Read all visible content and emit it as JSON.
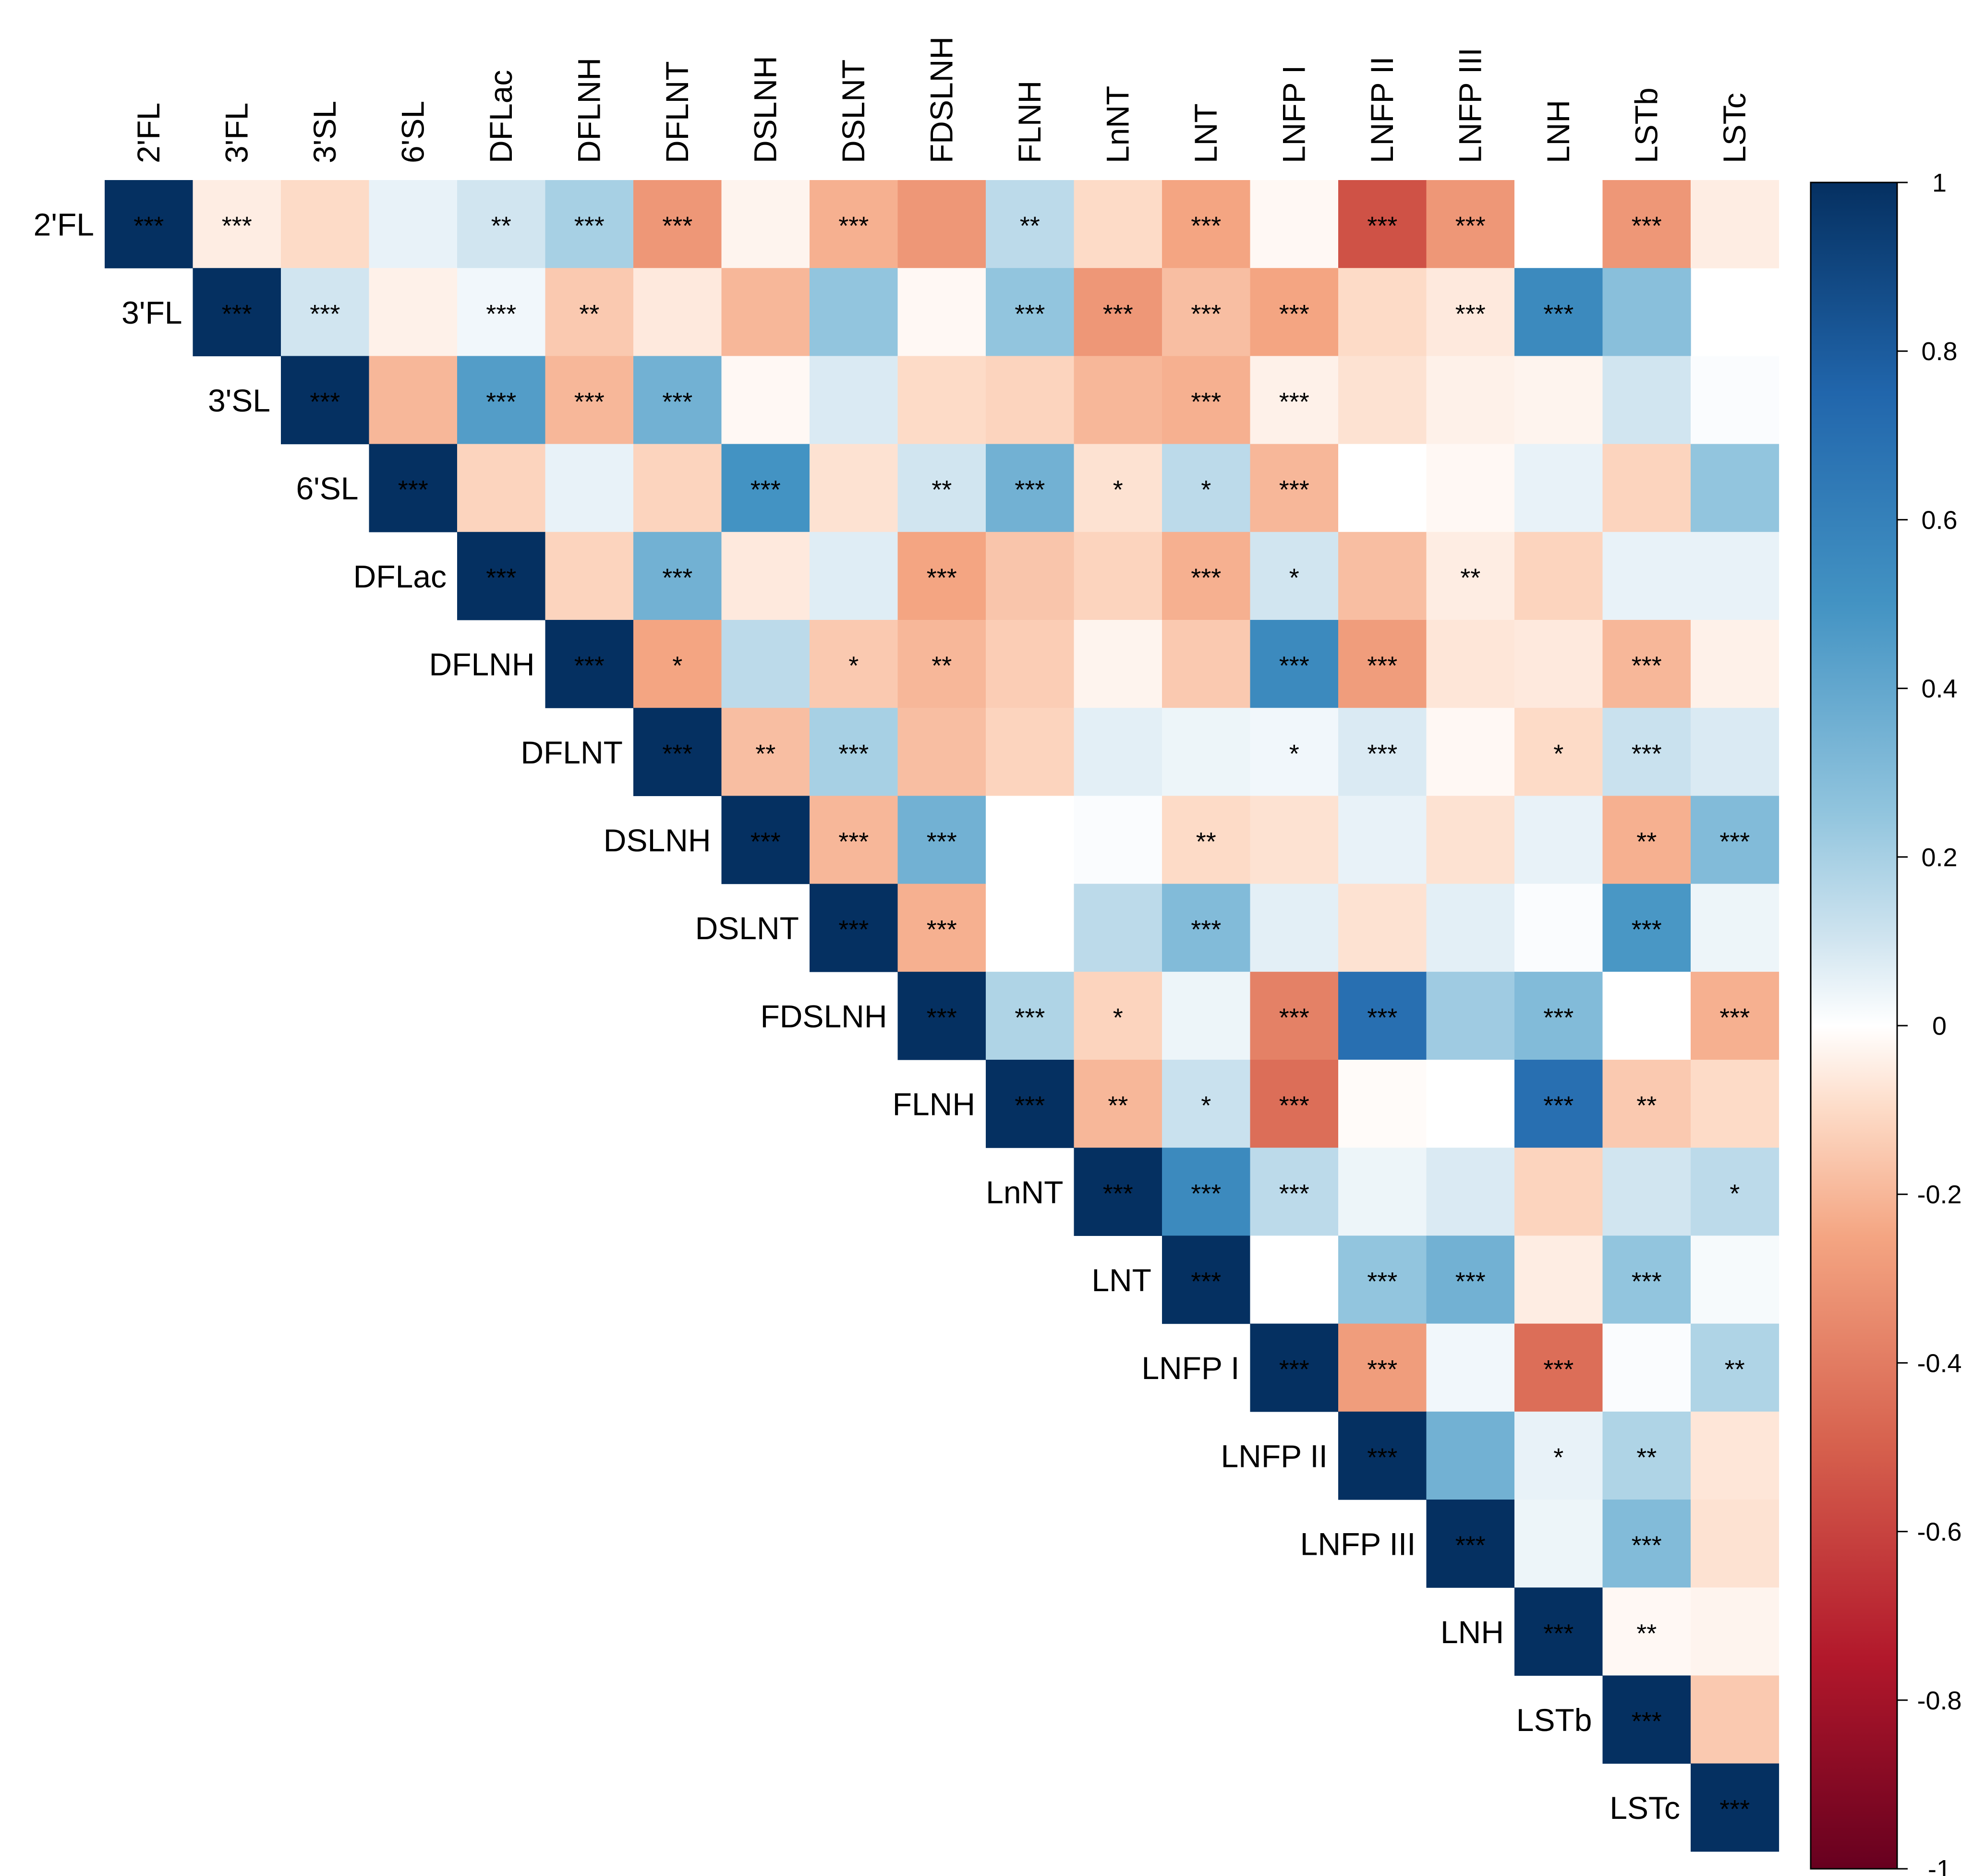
{
  "chart_data": {
    "type": "heatmap",
    "title": "",
    "variables": [
      "2'FL",
      "3'FL",
      "3'SL",
      "6'SL",
      "DFLac",
      "DFLNH",
      "DFLNT",
      "DSLNH",
      "DSLNT",
      "FDSLNH",
      "FLNH",
      "LnNT",
      "LNT",
      "LNFP I",
      "LNFP II",
      "LNFP III",
      "LNH",
      "LSTb",
      "LSTc"
    ],
    "matrix_shape": "upper-triangular",
    "values": [
      [
        1.0,
        -0.05,
        -0.1,
        0.05,
        0.1,
        0.2,
        -0.3,
        -0.03,
        -0.22,
        -0.3,
        0.15,
        -0.1,
        -0.25,
        -0.02,
        -0.55,
        -0.3,
        0.0,
        -0.3,
        -0.05
      ],
      [
        1.0,
        0.1,
        -0.04,
        0.03,
        -0.15,
        -0.06,
        -0.2,
        0.25,
        -0.02,
        0.25,
        -0.3,
        -0.18,
        -0.25,
        -0.1,
        -0.06,
        0.55,
        0.28
      ],
      [
        1.0,
        -0.2,
        0.45,
        -0.2,
        0.35,
        -0.02,
        0.08,
        -0.1,
        -0.12,
        -0.2,
        -0.22,
        -0.04,
        -0.08,
        -0.04,
        -0.03,
        0.1,
        0.01
      ],
      [
        1.0,
        -0.12,
        0.05,
        -0.12,
        0.5,
        -0.08,
        0.1,
        0.35,
        -0.08,
        0.15,
        -0.2,
        0.0,
        -0.02,
        0.05,
        -0.12,
        0.25
      ],
      [
        1.0,
        -0.12,
        0.35,
        -0.06,
        0.07,
        -0.25,
        -0.16,
        -0.12,
        -0.22,
        0.1,
        -0.18,
        -0.05,
        -0.12,
        0.05,
        0.05
      ],
      [
        1.0,
        -0.25,
        0.15,
        -0.15,
        -0.2,
        -0.14,
        -0.03,
        -0.15,
        0.55,
        -0.28,
        -0.07,
        -0.06,
        -0.2,
        -0.04
      ],
      [
        1.0,
        -0.18,
        0.2,
        -0.18,
        -0.12,
        0.06,
        0.04,
        0.03,
        0.08,
        -0.02,
        -0.1,
        0.12,
        0.08
      ],
      [
        1.0,
        -0.2,
        0.35,
        0.0,
        0.01,
        -0.1,
        -0.08,
        0.05,
        -0.08,
        0.05,
        -0.22,
        0.3
      ],
      [
        1.0,
        -0.22,
        0.0,
        0.15,
        0.3,
        0.06,
        -0.08,
        0.06,
        0.01,
        0.48,
        0.04
      ],
      [
        1.0,
        0.18,
        -0.12,
        0.04,
        -0.38,
        0.7,
        0.22,
        0.3,
        0.0,
        -0.22
      ],
      [
        1.0,
        -0.2,
        0.12,
        -0.45,
        -0.01,
        0.0,
        0.7,
        -0.15,
        -0.1
      ],
      [
        1.0,
        0.55,
        0.15,
        0.04,
        0.08,
        -0.12,
        0.1,
        0.15
      ],
      [
        1.0,
        0.0,
        0.25,
        0.35,
        -0.05,
        0.25,
        0.02
      ],
      [
        1.0,
        -0.28,
        0.03,
        -0.45,
        0.01,
        0.18
      ],
      [
        1.0,
        0.35,
        0.05,
        0.18,
        -0.07
      ],
      [
        1.0,
        0.04,
        0.3,
        -0.08
      ],
      [
        1.0,
        -0.02,
        -0.03
      ],
      [
        1.0,
        -0.15
      ],
      [
        1.0
      ]
    ],
    "significance": [
      [
        "***",
        "***",
        "",
        "",
        "**",
        "***",
        "***",
        "",
        "***",
        "",
        "**",
        "",
        "***",
        "",
        "***",
        "***",
        "",
        "***",
        ""
      ],
      [
        "***",
        "***",
        "",
        "***",
        "**",
        "",
        "",
        "",
        "",
        "***",
        "***",
        "***",
        "***",
        "",
        "***",
        "***",
        "",
        ""
      ],
      [
        "***",
        "",
        "***",
        "***",
        "***",
        "",
        "",
        "",
        "",
        "",
        "***",
        "***",
        "",
        "",
        "",
        "",
        "",
        ""
      ],
      [
        "***",
        "",
        "",
        "",
        "***",
        "",
        "**",
        "***",
        "*",
        "*",
        "***",
        "",
        "",
        "",
        "",
        ""
      ],
      [
        "***",
        "",
        "***",
        "",
        "",
        "***",
        "",
        "",
        "***",
        "*",
        "",
        "**",
        "",
        "",
        ""
      ],
      [
        "***",
        "*",
        "",
        "*",
        "**",
        "",
        "",
        "",
        "***",
        "***",
        "",
        "",
        "***",
        ""
      ],
      [
        "***",
        "**",
        "***",
        "",
        "",
        "",
        "",
        "*",
        "***",
        "",
        "*",
        "***",
        ""
      ],
      [
        "***",
        "***",
        "***",
        "",
        "",
        "**",
        "",
        "",
        "",
        "",
        "**",
        "***"
      ],
      [
        "***",
        "***",
        "",
        "",
        "***",
        "",
        "",
        "",
        "",
        "***",
        ""
      ],
      [
        "***",
        "***",
        "*",
        "",
        "***",
        "***",
        "",
        "***",
        "",
        "***"
      ],
      [
        "***",
        "**",
        "*",
        "***",
        "",
        "",
        "***",
        "**",
        ""
      ],
      [
        "***",
        "***",
        "***",
        "",
        "",
        "",
        "",
        "*"
      ],
      [
        "***",
        "",
        "***",
        "***",
        "",
        "***",
        ""
      ],
      [
        "***",
        "***",
        "",
        "***",
        "",
        "**"
      ],
      [
        "***",
        "",
        "*",
        "**",
        ""
      ],
      [
        "***",
        "",
        "***",
        ""
      ],
      [
        "***",
        "**",
        ""
      ],
      [
        "***",
        ""
      ],
      [
        "***"
      ]
    ],
    "colorbar": {
      "range": [
        -1,
        1
      ],
      "tick_labels": [
        "1",
        "0.8",
        "0.6",
        "0.4",
        "0.2",
        "0",
        "-0.2",
        "-0.4",
        "-0.6",
        "-0.8",
        "-1"
      ],
      "colors": {
        "-1": "#67001f",
        "-0.75": "#b2182b",
        "-0.5": "#d6604d",
        "-0.25": "#f4a582",
        "-0.1": "#fddbc7",
        "0": "#ffffff",
        "0.1": "#d1e5f0",
        "0.25": "#92c5de",
        "0.5": "#4393c3",
        "0.75": "#2166ac",
        "1": "#053061"
      }
    }
  }
}
